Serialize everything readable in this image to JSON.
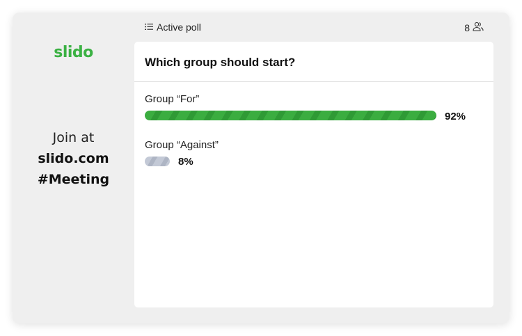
{
  "sidebar": {
    "logo": "slido",
    "join_line1": "Join at",
    "join_line2": "slido.com",
    "join_line3": "#Meeting"
  },
  "header": {
    "icon": "list-icon",
    "title": "Active poll",
    "participants": "8",
    "participants_icon": "users-icon"
  },
  "poll": {
    "question": "Which group should start?",
    "options": [
      {
        "label": "Group “For”",
        "percent_label": "92%",
        "percent": 92,
        "color": "#3bad40"
      },
      {
        "label": "Group “Against”",
        "percent_label": "8%",
        "percent": 8,
        "color": "#c3c9d6"
      }
    ]
  },
  "colors": {
    "brand": "#3bb143",
    "background": "#efefef"
  }
}
